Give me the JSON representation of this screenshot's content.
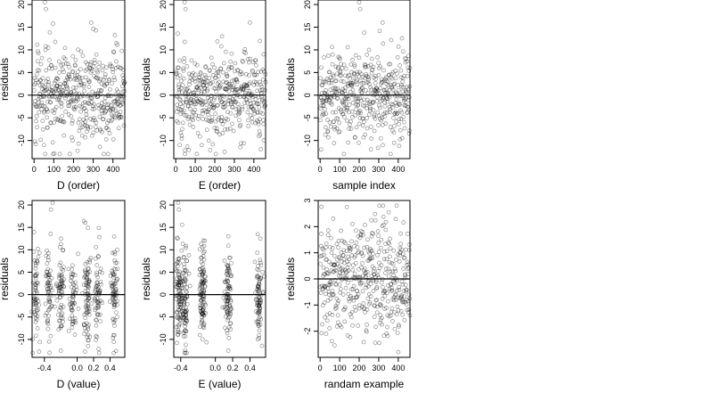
{
  "figure": {
    "panels": [
      {
        "id": "d-order",
        "xlabel": "D (order)",
        "ylabel": "residuals",
        "xticks": [
          "0",
          "100",
          "200",
          "300",
          "400"
        ],
        "yticks": [
          "-10",
          "-5",
          "0",
          "5",
          "10",
          "15",
          "20"
        ]
      },
      {
        "id": "e-order",
        "xlabel": "E (order)",
        "ylabel": "residuals",
        "xticks": [
          "0",
          "100",
          "200",
          "300",
          "400"
        ],
        "yticks": [
          "-10",
          "-5",
          "0",
          "5",
          "10",
          "15",
          "20"
        ]
      },
      {
        "id": "sample-index",
        "xlabel": "sample index",
        "ylabel": "residuals",
        "xticks": [
          "0",
          "100",
          "200",
          "300",
          "400"
        ],
        "yticks": [
          "-10",
          "-5",
          "0",
          "5",
          "10",
          "15",
          "20"
        ]
      },
      {
        "id": "d-value",
        "xlabel": "D (value)",
        "ylabel": "residuals",
        "xticks": [
          "-0.4",
          "0.0",
          "0.2",
          "0.4"
        ],
        "yticks": [
          "-10",
          "-5",
          "0",
          "5",
          "10",
          "15",
          "20"
        ]
      },
      {
        "id": "e-value",
        "xlabel": "E (value)",
        "ylabel": "residuals",
        "xticks": [
          "-0.4",
          "0.0",
          "0.2",
          "0.4"
        ],
        "yticks": [
          "-10",
          "-5",
          "0",
          "5",
          "10",
          "15",
          "20"
        ]
      },
      {
        "id": "randam-example",
        "xlabel": "randam example",
        "ylabel": "residuals",
        "xticks": [
          "0",
          "100",
          "200",
          "300",
          "400"
        ],
        "yticks": [
          "-2",
          "-1",
          "0",
          "1",
          "2",
          "3"
        ]
      }
    ]
  },
  "chart_data": [
    {
      "type": "scatter",
      "xlabel": "D (order)",
      "ylabel": "residuals",
      "xlim": [
        -10,
        460
      ],
      "ylim": [
        -14,
        21
      ],
      "xticks": [
        0,
        100,
        200,
        300,
        400
      ],
      "yticks": [
        -10,
        -5,
        0,
        5,
        10,
        15,
        20
      ],
      "reference_line_y": 0,
      "n_points": 460,
      "x_range": [
        1,
        460
      ],
      "y_range": [
        -13,
        20.5
      ],
      "notable_points": [
        [
          55,
          20.5
        ],
        [
          60,
          19
        ],
        [
          290,
          16
        ],
        [
          130,
          -13
        ],
        [
          50,
          -11
        ]
      ],
      "point_style": "open circle, gray"
    },
    {
      "type": "scatter",
      "xlabel": "E (order)",
      "ylabel": "residuals",
      "xlim": [
        -10,
        460
      ],
      "ylim": [
        -14,
        21
      ],
      "xticks": [
        0,
        100,
        200,
        300,
        400
      ],
      "yticks": [
        -10,
        -5,
        0,
        5,
        10,
        15,
        20
      ],
      "reference_line_y": 0,
      "n_points": 460,
      "x_range": [
        1,
        460
      ],
      "y_range": [
        -13,
        20.5
      ],
      "notable_points": [
        [
          45,
          20.5
        ],
        [
          50,
          19
        ],
        [
          380,
          16
        ],
        [
          250,
          -12.5
        ],
        [
          20,
          -11
        ]
      ],
      "point_style": "open circle, gray"
    },
    {
      "type": "scatter",
      "xlabel": "sample index",
      "ylabel": "residuals",
      "xlim": [
        -10,
        460
      ],
      "ylim": [
        -14,
        21
      ],
      "xticks": [
        0,
        100,
        200,
        300,
        400
      ],
      "yticks": [
        -10,
        -5,
        0,
        5,
        10,
        15,
        20
      ],
      "reference_line_y": 0,
      "n_points": 460,
      "x_range": [
        1,
        460
      ],
      "y_range": [
        -13,
        20.5
      ],
      "notable_points": [
        [
          200,
          20.5
        ],
        [
          205,
          19
        ],
        [
          320,
          16
        ],
        [
          5,
          -12
        ]
      ],
      "point_style": "open circle, gray"
    },
    {
      "type": "scatter",
      "xlabel": "D (value)",
      "ylabel": "residuals",
      "xlim": [
        -0.55,
        0.58
      ],
      "ylim": [
        -14,
        21
      ],
      "xticks": [
        -0.4,
        0.0,
        0.2,
        0.4
      ],
      "yticks": [
        -10,
        -5,
        0,
        5,
        10,
        15,
        20
      ],
      "reference_line_y": 0,
      "n_points": 460,
      "x_range": [
        -0.52,
        0.55
      ],
      "y_range": [
        -13,
        20.5
      ],
      "x_clusters": [
        -0.5,
        -0.35,
        -0.2,
        -0.05,
        0.12,
        0.25,
        0.45
      ],
      "notable_points": [
        [
          -0.3,
          20.5
        ],
        [
          -0.32,
          19
        ],
        [
          0.1,
          16
        ],
        [
          -0.2,
          -12.5
        ]
      ],
      "point_style": "open circle, gray"
    },
    {
      "type": "scatter",
      "xlabel": "E (value)",
      "ylabel": "residuals",
      "xlim": [
        -0.48,
        0.58
      ],
      "ylim": [
        -14,
        21
      ],
      "xticks": [
        -0.4,
        0.0,
        0.2,
        0.4
      ],
      "yticks": [
        -10,
        -5,
        0,
        5,
        10,
        15,
        20
      ],
      "reference_line_y": 0,
      "n_points": 460,
      "x_range": [
        -0.45,
        0.55
      ],
      "y_range": [
        -13,
        20.5
      ],
      "x_clusters": [
        -0.42,
        -0.35,
        -0.15,
        0.15,
        0.5
      ],
      "notable_points": [
        [
          -0.43,
          20.5
        ],
        [
          -0.42,
          19
        ],
        [
          0.15,
          13
        ],
        [
          0.15,
          -12.5
        ]
      ],
      "point_style": "open circle, gray"
    },
    {
      "type": "scatter",
      "xlabel": "randam example",
      "ylabel": "residuals",
      "xlim": [
        -10,
        460
      ],
      "ylim": [
        -3.0,
        3.0
      ],
      "xticks": [
        0,
        100,
        200,
        300,
        400
      ],
      "yticks": [
        -2,
        -1,
        0,
        1,
        2,
        3
      ],
      "reference_line_y": 0,
      "n_points": 460,
      "x_range": [
        1,
        460
      ],
      "y_range": [
        -2.8,
        2.8
      ],
      "point_style": "open circle, gray"
    }
  ]
}
